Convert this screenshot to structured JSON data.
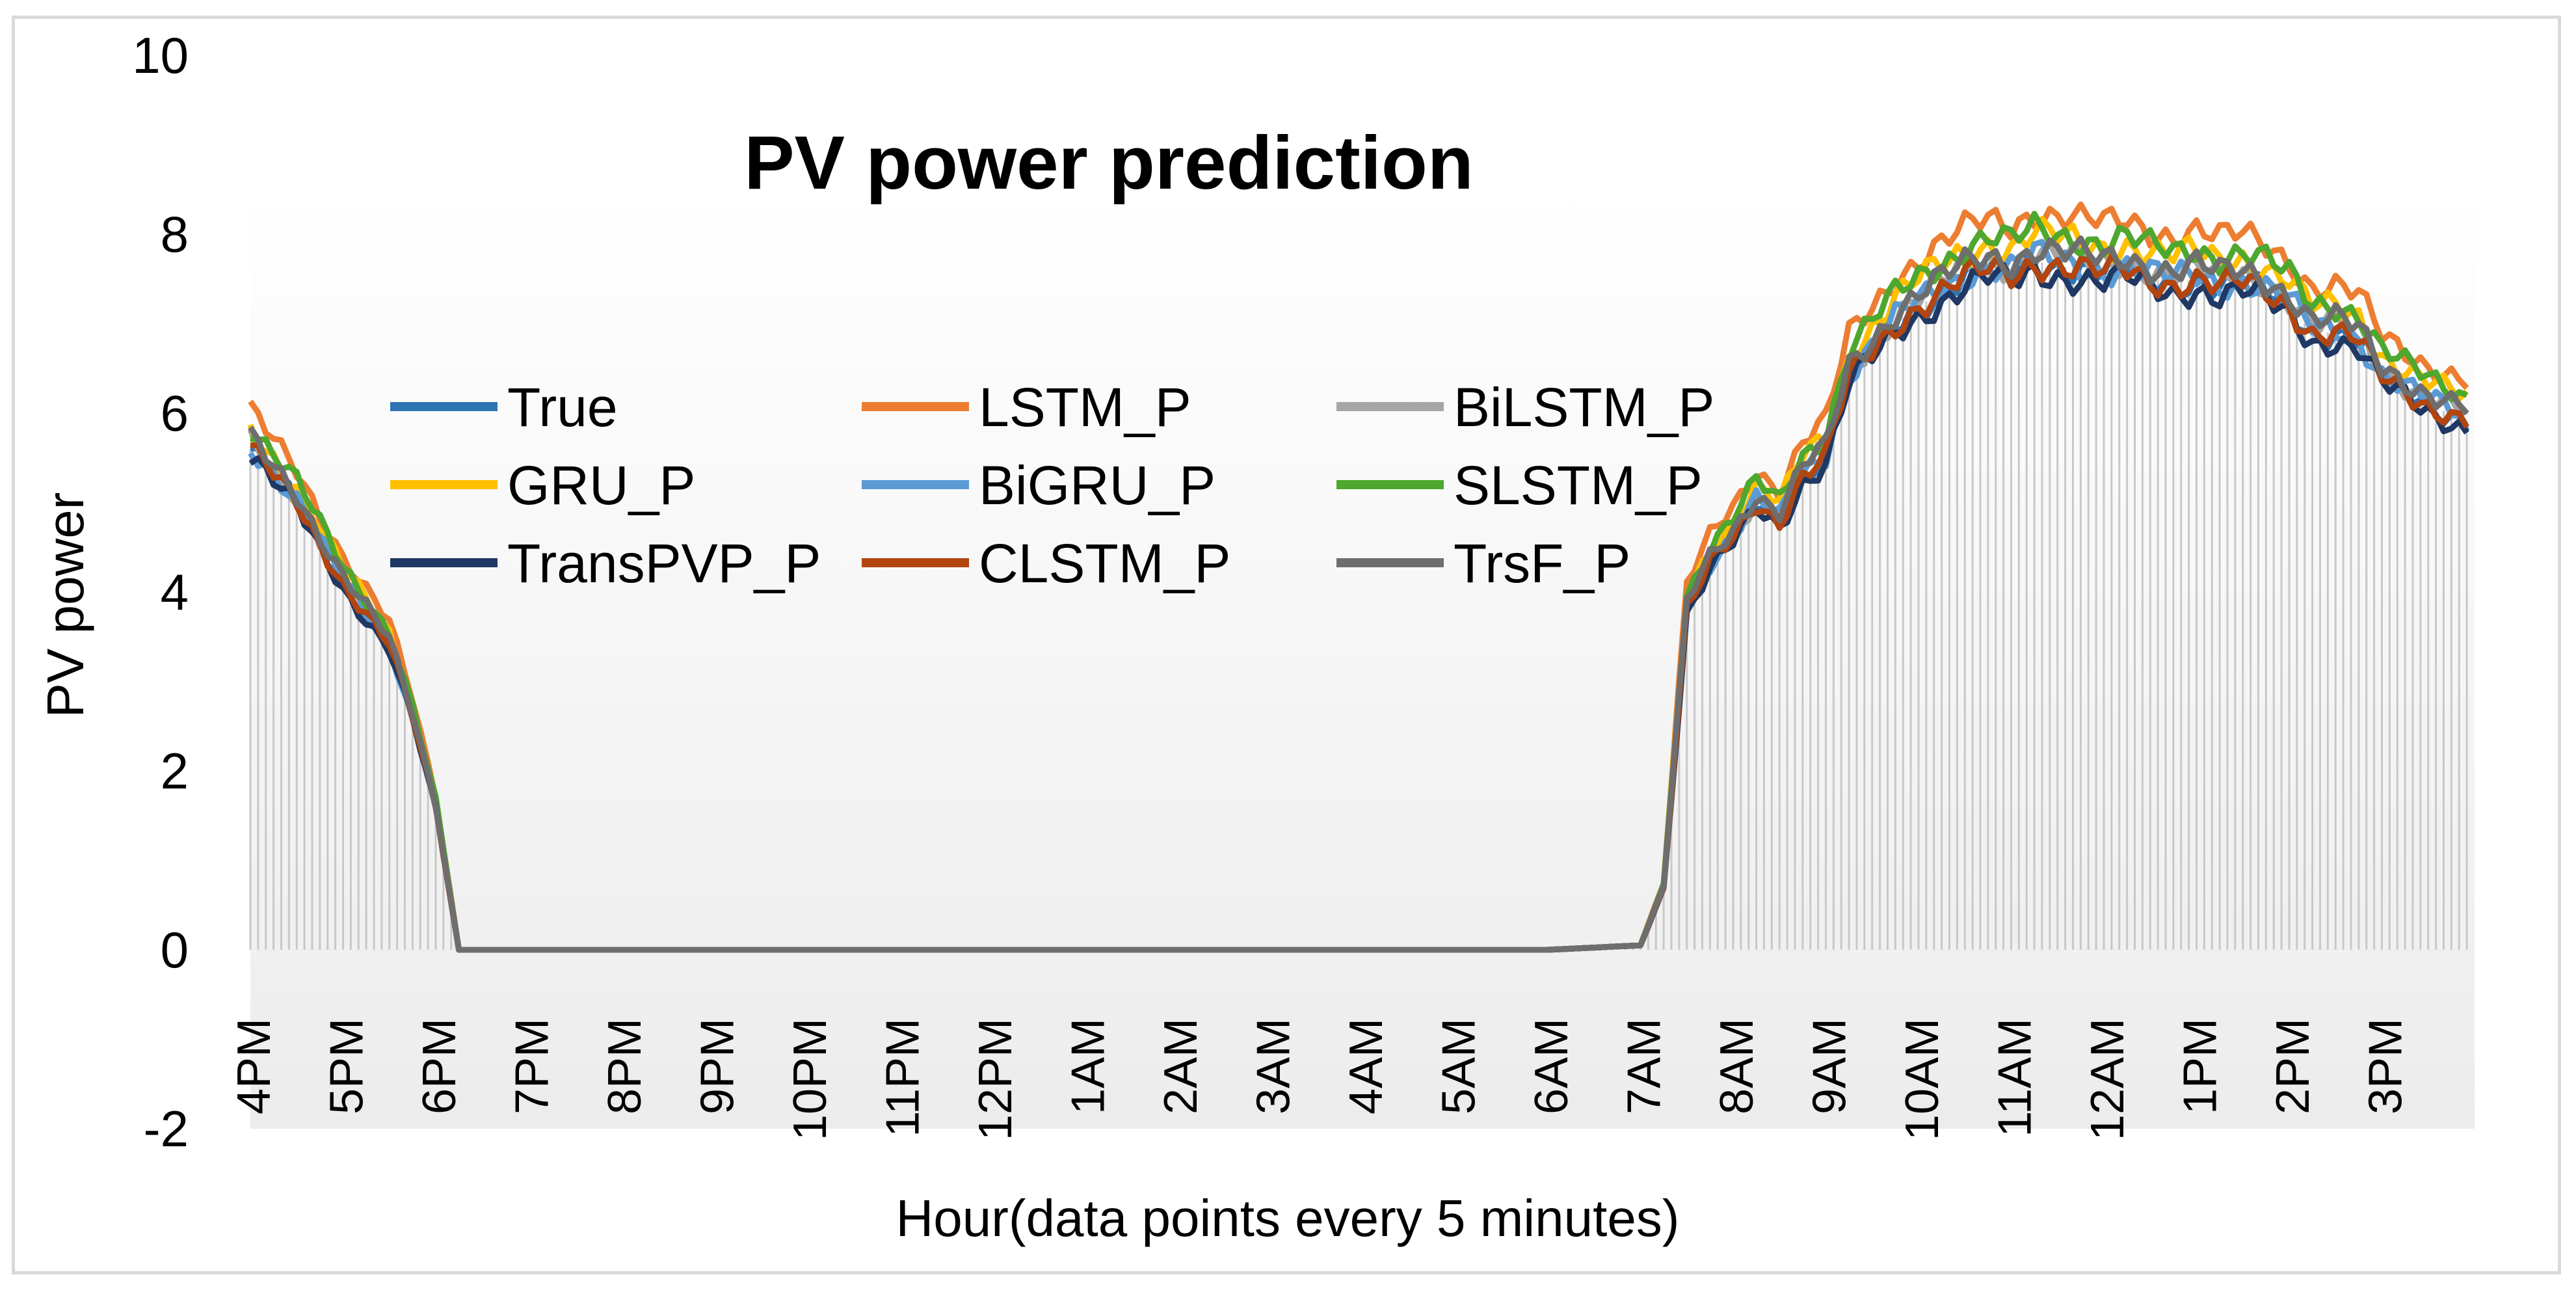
{
  "chart_data": {
    "type": "line",
    "title": "PV power prediction",
    "xlabel": "Hour(data points every 5 minutes)",
    "ylabel": "PV power",
    "ylim": [
      -2,
      10
    ],
    "yticks": [
      -2,
      0,
      2,
      4,
      6,
      8,
      10
    ],
    "x_categories": [
      "4PM",
      "5PM",
      "6PM",
      "7PM",
      "8PM",
      "9PM",
      "10PM",
      "11PM",
      "12PM",
      "1AM",
      "2AM",
      "3AM",
      "4AM",
      "5AM",
      "6AM",
      "7AM",
      "8AM",
      "9AM",
      "10AM",
      "11AM",
      "12AM",
      "1PM",
      "2PM",
      "3PM"
    ],
    "points_per_hour": 12,
    "x_hours": [
      0,
      0.5,
      1,
      1.5,
      1.75,
      2,
      2.25,
      2.5,
      3,
      4,
      5,
      6,
      7,
      8,
      9,
      10,
      11,
      12,
      13,
      14,
      15,
      15.25,
      15.5,
      15.75,
      16,
      16.25,
      16.5,
      16.75,
      17,
      17.25,
      17.5,
      17.75,
      18,
      18.25,
      18.5,
      18.75,
      19,
      19.25,
      19.5,
      19.75,
      20,
      20.25,
      20.5,
      20.75,
      21,
      21.25,
      21.5,
      21.75,
      22,
      22.25,
      22.5,
      22.75,
      23,
      23.5,
      23.95
    ],
    "base_values": [
      5.6,
      5.0,
      4.1,
      3.4,
      2.6,
      1.6,
      0.0,
      0.0,
      0.0,
      0.0,
      0.0,
      0.0,
      0.0,
      0.0,
      0.0,
      0.0,
      0.0,
      0.0,
      0.0,
      0.0,
      0.05,
      0.7,
      3.8,
      4.3,
      4.6,
      5.0,
      4.8,
      5.3,
      5.5,
      6.4,
      6.7,
      7.0,
      7.2,
      7.35,
      7.5,
      7.6,
      7.55,
      7.7,
      7.65,
      7.6,
      7.55,
      7.6,
      7.5,
      7.45,
      7.5,
      7.4,
      7.45,
      7.35,
      7.2,
      6.9,
      6.9,
      6.8,
      6.4,
      6.1,
      5.9
    ],
    "series": [
      {
        "name": "True",
        "color": "#2e75b6",
        "offset": 0.0
      },
      {
        "name": "LSTM_P",
        "color": "#ed7d31",
        "offset": 0.55
      },
      {
        "name": "BiLSTM_P",
        "color": "#a5a5a5",
        "offset": 0.1
      },
      {
        "name": "GRU_P",
        "color": "#ffc000",
        "offset": 0.3
      },
      {
        "name": "BiGRU_P",
        "color": "#5b9bd5",
        "offset": 0.05
      },
      {
        "name": "SLSTM_P",
        "color": "#4ea72e",
        "offset": 0.35
      },
      {
        "name": "TransPVP_P",
        "color": "#1f3864",
        "offset": -0.1
      },
      {
        "name": "CLSTM_P",
        "color": "#b24510",
        "offset": 0.0
      },
      {
        "name": "TrsF_P",
        "color": "#6e6e6e",
        "offset": 0.15
      }
    ]
  }
}
